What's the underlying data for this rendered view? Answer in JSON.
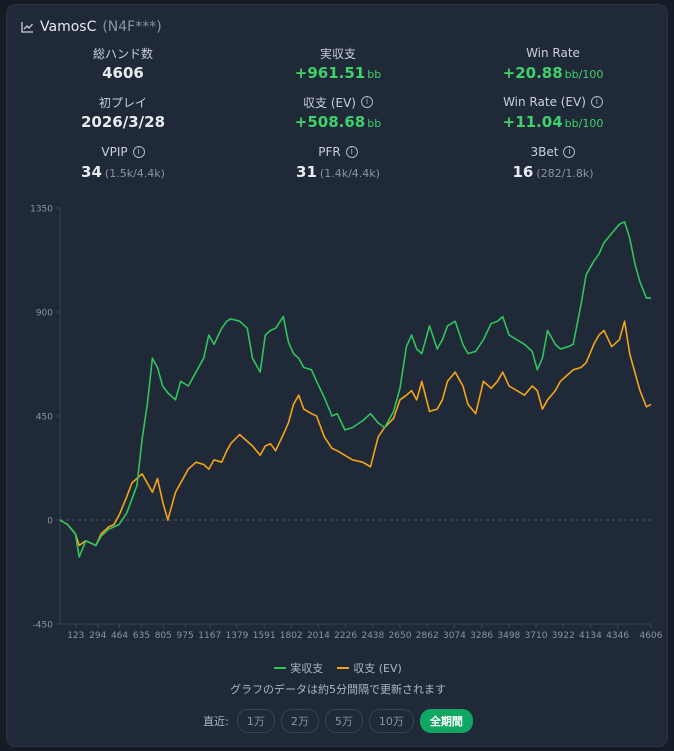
{
  "header": {
    "title": "VamosC",
    "subtitle": "(N4F***)"
  },
  "stats": {
    "hands": {
      "label": "総ハンド数",
      "value": "4606"
    },
    "profit": {
      "label": "実収支",
      "value": "+961.51",
      "unit": "bb"
    },
    "winrate": {
      "label": "Win Rate",
      "value": "+20.88",
      "unit": "bb/100"
    },
    "first_play": {
      "label": "初プレイ",
      "value": "2026/3/28"
    },
    "profit_ev": {
      "label": "収支 (EV)",
      "value": "+508.68",
      "unit": "bb"
    },
    "winrate_ev": {
      "label": "Win Rate (EV)",
      "value": "+11.04",
      "unit": "bb/100"
    },
    "vpip": {
      "label": "VPIP",
      "value": "34",
      "detail": "(1.5k/4.4k)"
    },
    "pfr": {
      "label": "PFR",
      "value": "31",
      "detail": "(1.4k/4.4k)"
    },
    "threebet": {
      "label": "3Bet",
      "value": "16",
      "detail": "(282/1.8k)"
    }
  },
  "chart_data": {
    "type": "line",
    "xlim": [
      0,
      4606
    ],
    "ylim": [
      -450,
      1350
    ],
    "y_ticks": [
      1350,
      900,
      450,
      0,
      -450
    ],
    "x_ticks": [
      123,
      294,
      464,
      635,
      805,
      975,
      1167,
      1379,
      1591,
      1802,
      2014,
      2226,
      2438,
      2650,
      2862,
      3074,
      3286,
      3498,
      3710,
      3922,
      4134,
      4346,
      4606
    ],
    "x_tick_labels": [
      "123",
      "294",
      "464",
      "635",
      "805",
      "975",
      "1167",
      "1379",
      "1591",
      "1802",
      "2014",
      "2226",
      "2438",
      "2650",
      "2862",
      "3074",
      "3286",
      "3498",
      "3710",
      "3922",
      "4134",
      "4346",
      "4606"
    ],
    "series": [
      {
        "name": "実収支",
        "color": "#2fc55c",
        "x": [
          0,
          60,
          120,
          150,
          200,
          280,
          320,
          380,
          420,
          460,
          520,
          560,
          600,
          640,
          680,
          720,
          760,
          800,
          840,
          900,
          940,
          1000,
          1060,
          1120,
          1160,
          1200,
          1260,
          1300,
          1330,
          1400,
          1460,
          1500,
          1560,
          1600,
          1640,
          1680,
          1740,
          1780,
          1820,
          1860,
          1900,
          1960,
          2000,
          2060,
          2120,
          2160,
          2220,
          2280,
          2360,
          2420,
          2480,
          2530,
          2600,
          2650,
          2700,
          2740,
          2780,
          2820,
          2880,
          2940,
          2980,
          3020,
          3080,
          3140,
          3180,
          3240,
          3300,
          3360,
          3410,
          3450,
          3500,
          3560,
          3620,
          3680,
          3720,
          3760,
          3800,
          3860,
          3900,
          3960,
          4000,
          4060,
          4100,
          4160,
          4200,
          4240,
          4300,
          4360,
          4400,
          4440,
          4480,
          4520,
          4570,
          4606
        ],
        "values": [
          0,
          -20,
          -60,
          -160,
          -90,
          -110,
          -70,
          -40,
          -30,
          -20,
          30,
          90,
          150,
          350,
          500,
          700,
          660,
          580,
          550,
          520,
          600,
          580,
          640,
          700,
          800,
          760,
          830,
          860,
          870,
          860,
          830,
          700,
          640,
          800,
          820,
          830,
          880,
          770,
          720,
          700,
          660,
          650,
          600,
          530,
          450,
          460,
          390,
          400,
          430,
          460,
          420,
          400,
          470,
          570,
          750,
          800,
          740,
          720,
          840,
          740,
          780,
          840,
          860,
          760,
          720,
          730,
          780,
          850,
          860,
          880,
          800,
          780,
          760,
          730,
          650,
          700,
          820,
          760,
          740,
          750,
          760,
          930,
          1060,
          1120,
          1150,
          1200,
          1240,
          1280,
          1290,
          1220,
          1110,
          1030,
          960,
          960
        ]
      },
      {
        "name": "収支 (EV)",
        "color": "#f5a416",
        "x": [
          0,
          60,
          120,
          150,
          200,
          280,
          320,
          380,
          420,
          460,
          520,
          560,
          600,
          640,
          680,
          720,
          760,
          800,
          840,
          900,
          940,
          1000,
          1060,
          1120,
          1160,
          1200,
          1260,
          1300,
          1330,
          1400,
          1460,
          1500,
          1560,
          1600,
          1640,
          1680,
          1740,
          1780,
          1820,
          1860,
          1900,
          1960,
          2000,
          2060,
          2120,
          2160,
          2220,
          2280,
          2360,
          2420,
          2480,
          2530,
          2600,
          2650,
          2700,
          2740,
          2780,
          2820,
          2880,
          2940,
          2980,
          3020,
          3080,
          3140,
          3180,
          3240,
          3300,
          3360,
          3410,
          3450,
          3500,
          3560,
          3620,
          3680,
          3720,
          3760,
          3800,
          3860,
          3900,
          3960,
          4000,
          4060,
          4100,
          4160,
          4200,
          4240,
          4300,
          4360,
          4400,
          4440,
          4480,
          4520,
          4570,
          4606
        ],
        "values": [
          0,
          -20,
          -60,
          -110,
          -90,
          -110,
          -60,
          -30,
          -20,
          20,
          100,
          160,
          180,
          200,
          160,
          120,
          180,
          80,
          0,
          120,
          160,
          220,
          250,
          240,
          220,
          260,
          250,
          300,
          330,
          370,
          340,
          320,
          280,
          320,
          330,
          300,
          370,
          420,
          500,
          540,
          480,
          460,
          450,
          360,
          310,
          300,
          280,
          260,
          250,
          230,
          360,
          400,
          440,
          520,
          540,
          560,
          520,
          600,
          470,
          480,
          520,
          600,
          640,
          580,
          500,
          460,
          600,
          570,
          600,
          640,
          580,
          560,
          540,
          580,
          560,
          480,
          520,
          560,
          600,
          630,
          650,
          660,
          680,
          760,
          800,
          820,
          750,
          780,
          860,
          720,
          640,
          560,
          490,
          500
        ]
      }
    ]
  },
  "legend": {
    "actual": "実収支",
    "ev": "収支 (EV)"
  },
  "note": "グラフのデータは約5分間隔で更新されます",
  "range": {
    "label": "直近:",
    "options": [
      "1万",
      "2万",
      "5万",
      "10万",
      "全期間"
    ],
    "selected": "全期間"
  }
}
